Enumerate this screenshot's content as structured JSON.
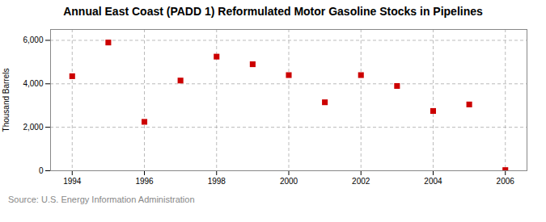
{
  "chart_data": {
    "type": "scatter",
    "title": "Annual East Coast (PADD 1) Reformulated Motor Gasoline Stocks in Pipelines",
    "ylabel": "Thousand Barrels",
    "source": "Source: U.S. Energy Information Administration",
    "x": [
      1994,
      1995,
      1996,
      1997,
      1998,
      1999,
      2000,
      2001,
      2002,
      2003,
      2004,
      2005,
      2006
    ],
    "values": [
      4350,
      5900,
      2250,
      4150,
      5250,
      4900,
      4400,
      3150,
      4400,
      3900,
      2750,
      3050,
      30
    ],
    "color": "#cc0000",
    "marker": "square",
    "xlim": [
      1993.4,
      2006.6
    ],
    "ylim": [
      0,
      6500
    ],
    "xticks": [
      1994,
      1996,
      1998,
      2000,
      2002,
      2004,
      2006
    ],
    "yticks": [
      0,
      {
        "value": 2000,
        "label": "2,000"
      },
      {
        "value": 4000,
        "label": "4,000"
      },
      {
        "value": 6000,
        "label": "6,000"
      }
    ],
    "grid": true
  }
}
